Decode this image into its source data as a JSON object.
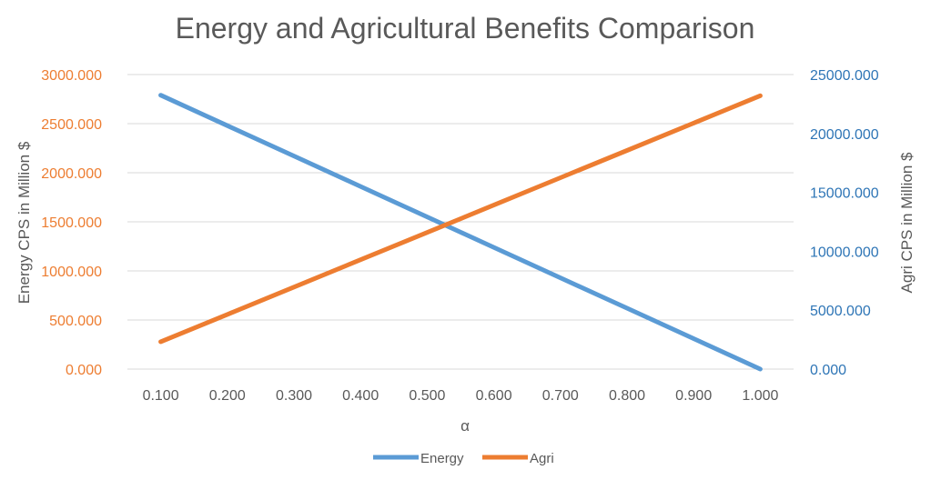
{
  "chart_data": {
    "type": "line",
    "title": "Energy and Agricultural Benefits Comparison",
    "xlabel": "α",
    "ylabel_left": "Energy CPS in Million $",
    "ylabel_right": "Agri CPS in Million $",
    "x": [
      0.1,
      0.2,
      0.3,
      0.4,
      0.5,
      0.6,
      0.7,
      0.8,
      0.9,
      1.0
    ],
    "x_tick_labels": [
      "0.100",
      "0.200",
      "0.300",
      "0.400",
      "0.500",
      "0.600",
      "0.700",
      "0.800",
      "0.900",
      "1.000"
    ],
    "ylim_left": [
      0,
      3000
    ],
    "ylim_right": [
      0,
      25000
    ],
    "y_left_tick_labels": [
      "0.000",
      "500.000",
      "1000.000",
      "1500.000",
      "2000.000",
      "2500.000",
      "3000.000"
    ],
    "y_right_tick_labels": [
      "0.000",
      "5000.000",
      "10000.000",
      "15000.000",
      "20000.000",
      "25000.000"
    ],
    "grid": true,
    "legend_position": "bottom",
    "series": [
      {
        "name": "Energy",
        "axis": "left",
        "color": "#5B9BD5",
        "values": [
          2790,
          2480,
          2170,
          1860,
          1550,
          1240,
          930,
          620,
          310,
          0
        ]
      },
      {
        "name": "Agri",
        "axis": "right",
        "color": "#ED7D31",
        "values": [
          2320,
          4640,
          6960,
          9280,
          11600,
          13920,
          16240,
          18560,
          20880,
          23200
        ]
      }
    ],
    "left_axis_color": "#ED7D31",
    "right_axis_color": "#2E75B6"
  }
}
